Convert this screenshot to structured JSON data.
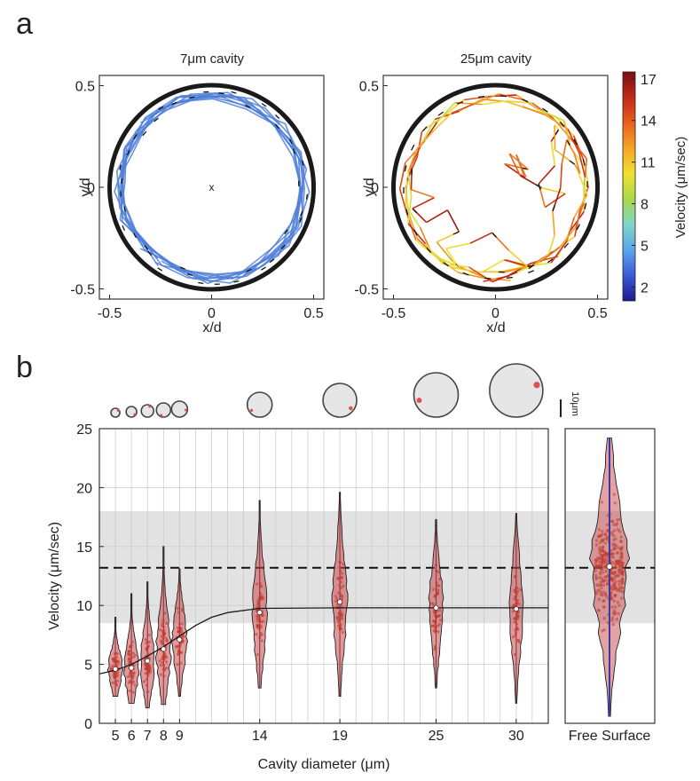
{
  "panel_labels": {
    "a": "a",
    "b": "b"
  },
  "colors": {
    "cavity_ring": "#1a1a1a",
    "trajectory_7um": "#4f7fd8",
    "violin_fill": "#c8454a",
    "violin_point": "#c0392b",
    "band_fill": "#e2e2e2",
    "median_dot": "#ffffff",
    "fit_line": "#1a1a1a",
    "free_surface_line": "#3a3aa0"
  },
  "chart_data": [
    {
      "type": "scatter",
      "id": "panel-a-left",
      "title": "7μm cavity",
      "xlabel": "x/d",
      "ylabel": "y/d",
      "xlim": [
        -0.55,
        0.55
      ],
      "ylim": [
        -0.55,
        0.55
      ],
      "xticks": [
        -0.5,
        0,
        0.5
      ],
      "yticks": [
        0.5,
        0,
        -0.5
      ],
      "xtick_labels": [
        "-0.5",
        "0",
        "0.5"
      ],
      "ytick_labels": [
        "0.5",
        "0",
        "-0.5"
      ],
      "cavity_radius": 0.5,
      "center_marker": "x",
      "trajectory_radius_range": [
        0.42,
        0.48
      ],
      "velocity_range_um_per_sec": [
        2,
        5
      ]
    },
    {
      "type": "scatter",
      "id": "panel-a-right",
      "title": "25μm cavity",
      "xlabel": "x/d",
      "ylabel": "y/d",
      "xlim": [
        -0.55,
        0.55
      ],
      "ylim": [
        -0.55,
        0.55
      ],
      "xticks": [
        -0.5,
        0,
        0.5
      ],
      "yticks": [
        0.5,
        0,
        -0.5
      ],
      "xtick_labels": [
        "-0.5",
        "0",
        "0.5"
      ],
      "ytick_labels": [
        "0.5",
        "0",
        "-0.5"
      ],
      "cavity_radius": 0.5,
      "velocity_range_um_per_sec": [
        8,
        17
      ],
      "colorbar": {
        "label": "Velocity (μm/sec)",
        "ticks": [
          2,
          5,
          8,
          11,
          14,
          17
        ],
        "tick_labels": [
          "2",
          "5",
          "8",
          "11",
          "14",
          "17"
        ],
        "range": [
          1,
          17.5
        ],
        "colormap": [
          "#1a1a8c",
          "#3c5ad6",
          "#5aa6ea",
          "#7fd6c8",
          "#a8d84a",
          "#f0e030",
          "#f5a623",
          "#e8601c",
          "#c0281a",
          "#7a1010"
        ]
      }
    },
    {
      "type": "violin",
      "id": "panel-b-main",
      "xlabel": "Cavity diameter (μm)",
      "ylabel": "Velocity (μm/sec)",
      "xlim": [
        4,
        32
      ],
      "ylim": [
        0,
        25
      ],
      "yticks": [
        0,
        5,
        10,
        15,
        20,
        25
      ],
      "ytick_labels": [
        "0",
        "5",
        "10",
        "15",
        "20",
        "25"
      ],
      "categories": [
        "5",
        "6",
        "7",
        "8",
        "9",
        "14",
        "19",
        "25",
        "30"
      ],
      "positions": [
        5,
        6,
        7,
        8,
        9,
        14,
        19,
        25,
        30
      ],
      "medians": [
        4.6,
        4.7,
        5.3,
        6.3,
        7.1,
        9.4,
        10.3,
        9.8,
        9.7
      ],
      "mins": [
        2.3,
        1.7,
        1.3,
        1.6,
        2.3,
        3.0,
        2.3,
        3.0,
        1.7
      ],
      "maxs": [
        9.0,
        11.0,
        12.0,
        15.0,
        13.1,
        18.9,
        19.6,
        17.3,
        17.8
      ],
      "shaded_band": [
        8.5,
        18.0
      ],
      "dashed_line": 13.2,
      "fit_curve": {
        "plateau": 9.8,
        "x": [
          4,
          5,
          6,
          7,
          8,
          9,
          10,
          11,
          12,
          14,
          19,
          25,
          32
        ],
        "y": [
          4.2,
          4.5,
          5.0,
          5.7,
          6.5,
          7.4,
          8.3,
          9.0,
          9.4,
          9.75,
          9.8,
          9.8,
          9.8
        ]
      },
      "scale_bar_label": "10μm"
    },
    {
      "type": "violin",
      "id": "panel-b-free",
      "categories": [
        "Free Surface"
      ],
      "ylim": [
        0,
        25
      ],
      "median": 13.3,
      "min": 0.6,
      "max": 24.2,
      "shaded_band": [
        8.5,
        18.0
      ],
      "dashed_line": 13.2
    }
  ]
}
